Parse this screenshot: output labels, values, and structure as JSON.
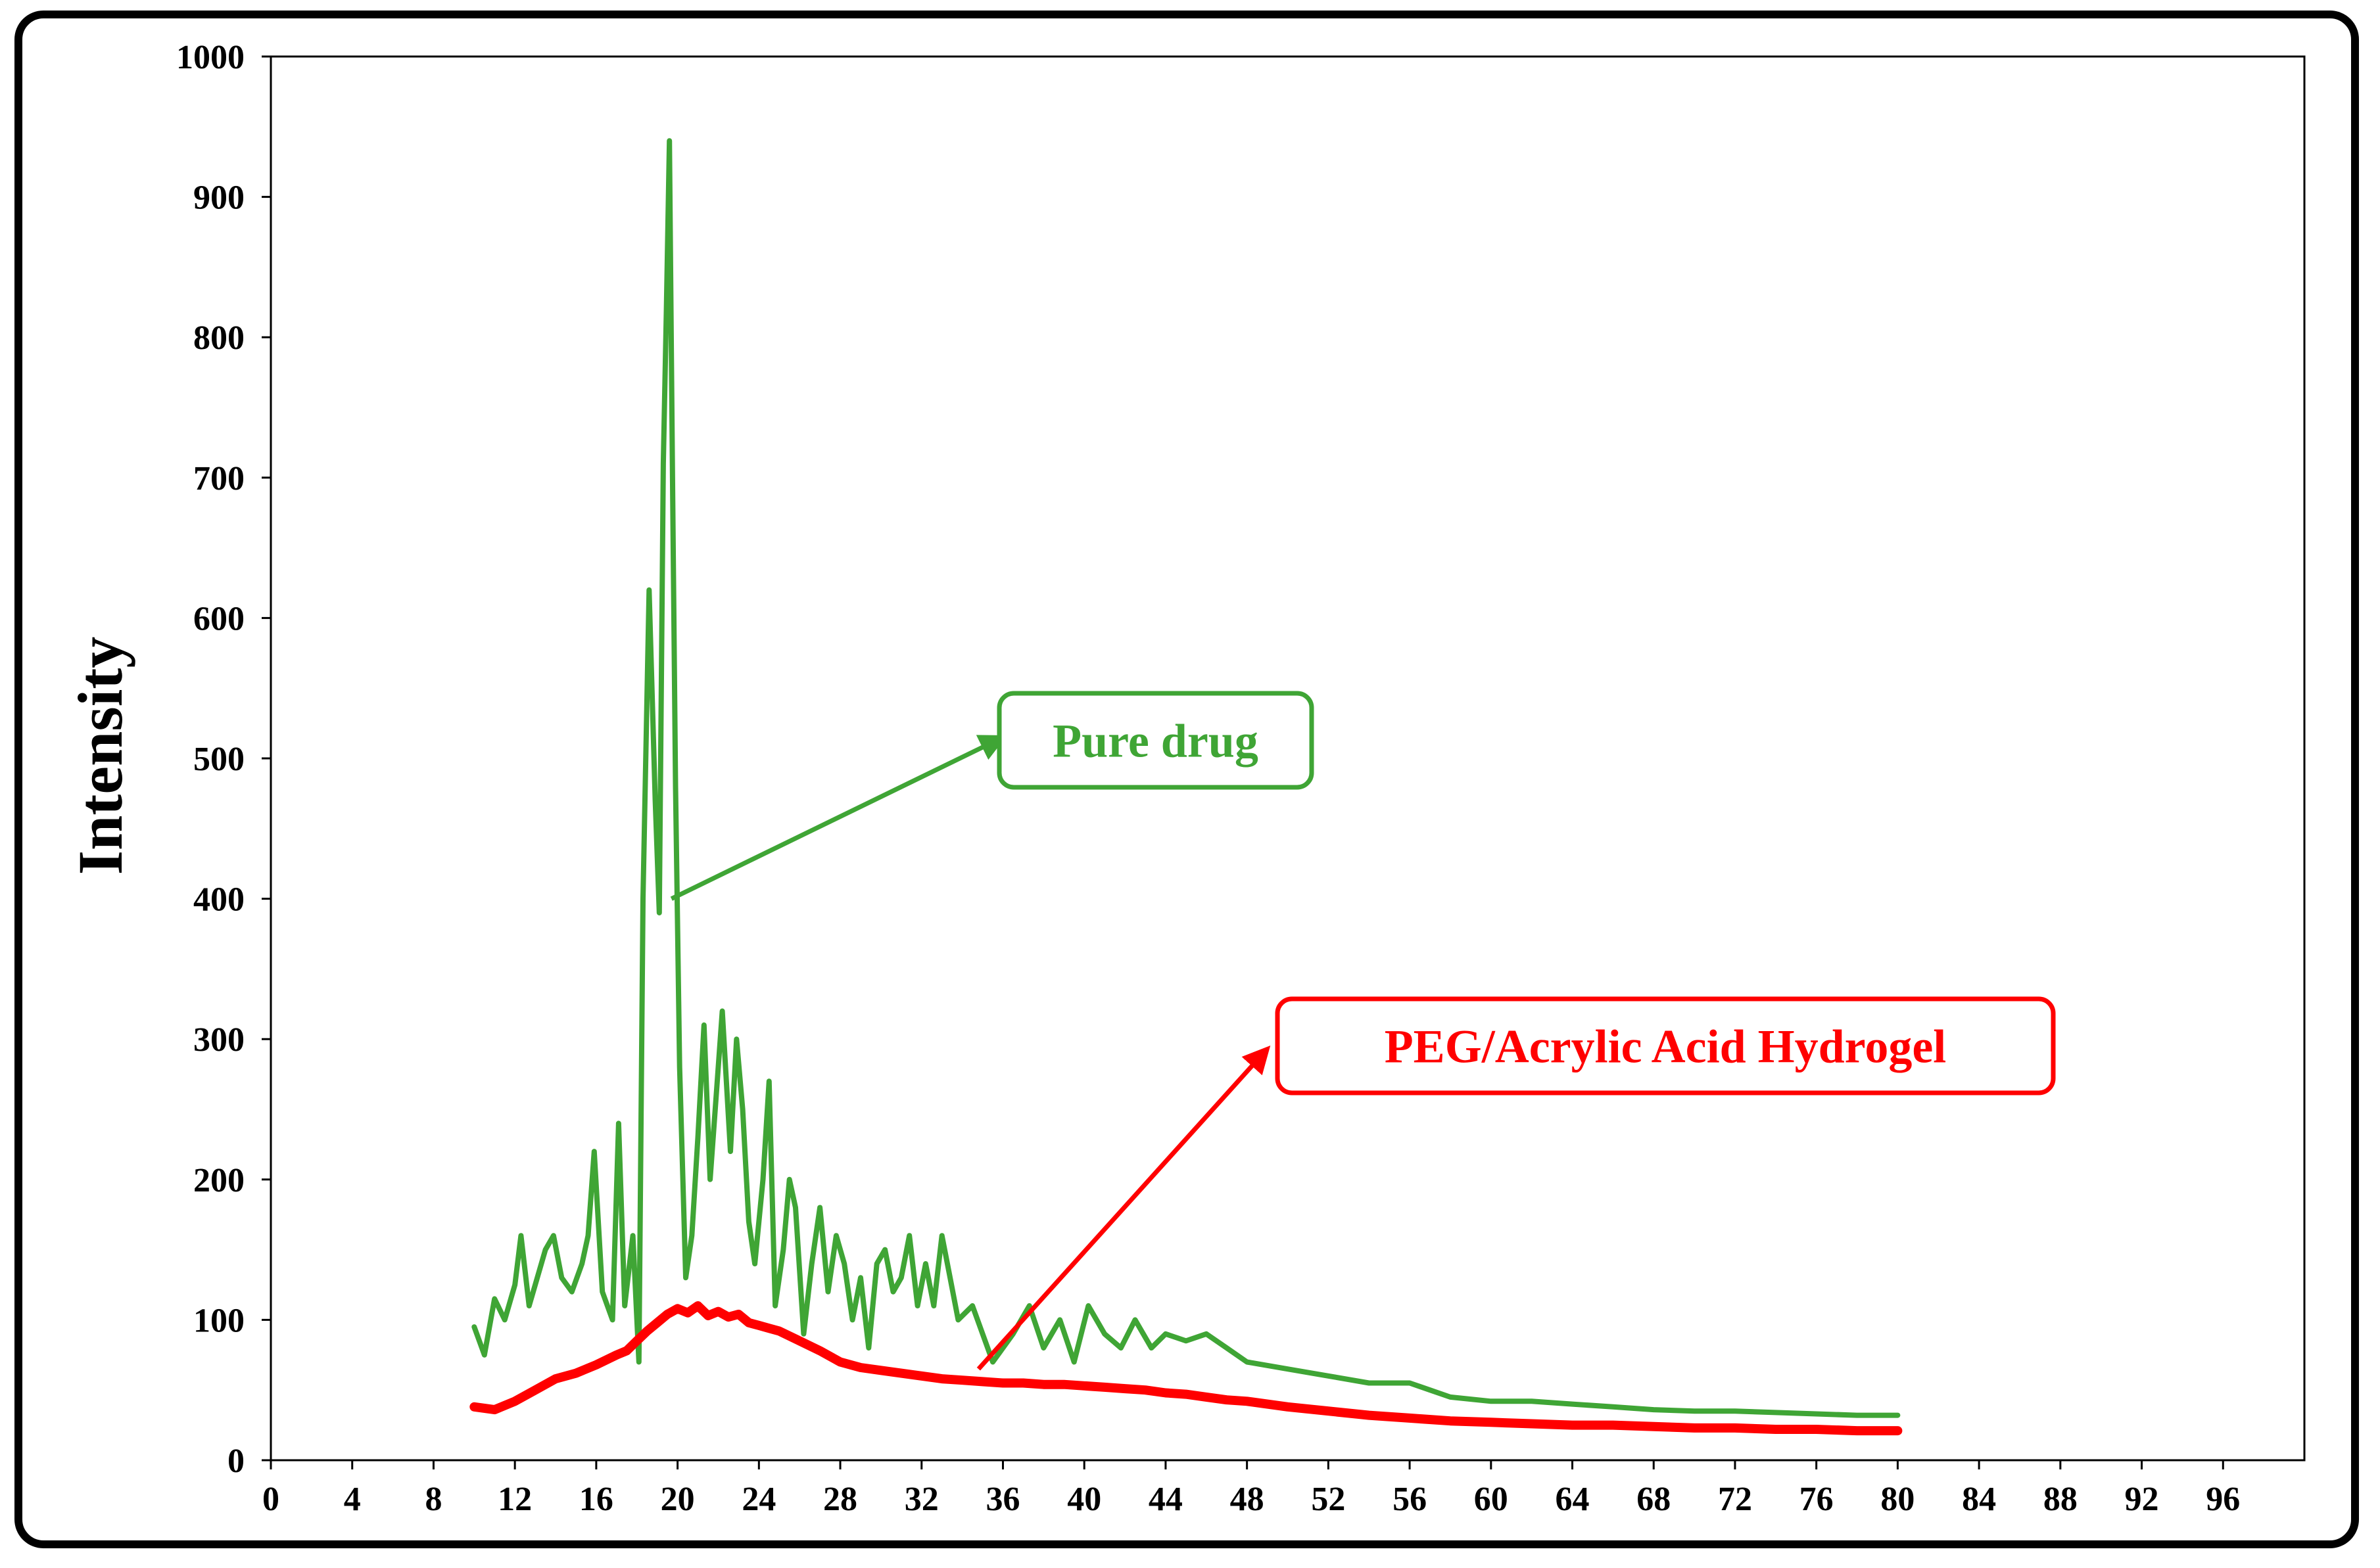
{
  "chart_data": {
    "type": "line",
    "title": "",
    "xlabel": "",
    "ylabel": "Intensity",
    "xlim": [
      0,
      100
    ],
    "ylim": [
      0,
      1000
    ],
    "x_ticks": [
      0,
      4,
      8,
      12,
      16,
      20,
      24,
      28,
      32,
      36,
      40,
      44,
      48,
      52,
      56,
      60,
      64,
      68,
      72,
      76,
      80,
      84,
      88,
      92,
      96
    ],
    "y_ticks": [
      0,
      100,
      200,
      300,
      400,
      500,
      600,
      700,
      800,
      900,
      1000
    ],
    "grid": false,
    "legend": "none",
    "series": [
      {
        "name": "Pure drug",
        "color": "#3fa535",
        "x": [
          10,
          10.5,
          11,
          11.5,
          12,
          12.3,
          12.7,
          13,
          13.5,
          13.9,
          14.3,
          14.8,
          15.3,
          15.6,
          15.9,
          16.3,
          16.8,
          17.1,
          17.4,
          17.8,
          18.1,
          18.3,
          18.6,
          18.9,
          19.1,
          19.3,
          19.45,
          19.6,
          19.75,
          19.9,
          20.1,
          20.4,
          20.7,
          21,
          21.3,
          21.6,
          21.9,
          22.2,
          22.6,
          22.9,
          23.2,
          23.5,
          23.8,
          24.2,
          24.5,
          24.8,
          25.2,
          25.5,
          25.8,
          26.2,
          26.6,
          27,
          27.4,
          27.8,
          28.2,
          28.6,
          29,
          29.4,
          29.8,
          30.2,
          30.6,
          31,
          31.4,
          31.8,
          32.2,
          32.6,
          33,
          33.4,
          33.8,
          34.5,
          35.5,
          36.5,
          37.3,
          38,
          38.8,
          39.5,
          40.2,
          41,
          41.8,
          42.5,
          43.3,
          44,
          45,
          46,
          47,
          48,
          50,
          52,
          54,
          56,
          57,
          58,
          60,
          62,
          64,
          66,
          68,
          70,
          72,
          74,
          76,
          78,
          80
        ],
        "y": [
          95,
          75,
          115,
          100,
          125,
          160,
          110,
          125,
          150,
          160,
          130,
          120,
          140,
          160,
          220,
          120,
          100,
          240,
          110,
          160,
          70,
          400,
          620,
          470,
          390,
          710,
          820,
          940,
          700,
          480,
          280,
          130,
          160,
          230,
          310,
          200,
          260,
          320,
          220,
          300,
          250,
          170,
          140,
          200,
          270,
          110,
          150,
          200,
          180,
          90,
          140,
          180,
          120,
          160,
          140,
          100,
          130,
          80,
          140,
          150,
          120,
          130,
          160,
          110,
          140,
          110,
          160,
          130,
          100,
          110,
          70,
          90,
          110,
          80,
          100,
          70,
          110,
          90,
          80,
          100,
          80,
          90,
          85,
          90,
          80,
          70,
          65,
          60,
          55,
          55,
          50,
          45,
          42,
          42,
          40,
          38,
          36,
          35,
          35,
          34,
          33,
          32,
          32
        ]
      },
      {
        "name": "PEG/Acrylic Acid Hydrogel",
        "color": "#ff0000",
        "x": [
          10,
          11,
          12,
          13,
          14,
          15,
          16,
          17,
          17.5,
          18,
          18.5,
          19,
          19.5,
          20,
          20.5,
          21,
          21.5,
          22,
          22.5,
          23,
          23.5,
          24,
          24.5,
          25,
          26,
          27,
          28,
          29,
          30,
          31,
          32,
          33,
          34,
          35,
          36,
          37,
          38,
          39,
          40,
          41,
          42,
          43,
          44,
          45,
          46,
          47,
          48,
          50,
          52,
          54,
          56,
          58,
          60,
          62,
          64,
          66,
          68,
          70,
          72,
          74,
          76,
          78,
          80
        ],
        "y": [
          38,
          36,
          42,
          50,
          58,
          62,
          68,
          75,
          78,
          85,
          92,
          98,
          104,
          108,
          105,
          110,
          103,
          106,
          102,
          104,
          98,
          96,
          94,
          92,
          85,
          78,
          70,
          66,
          64,
          62,
          60,
          58,
          57,
          56,
          55,
          55,
          54,
          54,
          53,
          52,
          51,
          50,
          48,
          47,
          45,
          43,
          42,
          38,
          35,
          32,
          30,
          28,
          27,
          26,
          25,
          25,
          24,
          23,
          23,
          22,
          22,
          21,
          21
        ]
      }
    ],
    "annotations": [
      {
        "text": "Pure drug",
        "color": "#3fa535",
        "arrow_from": [
          19.7,
          400
        ],
        "arrow_to": [
          36,
          515
        ]
      },
      {
        "text": "PEG/Acrylic Acid Hydrogel",
        "color": "#ff0000",
        "arrow_from": [
          34.8,
          65
        ],
        "arrow_to": [
          49,
          293
        ]
      }
    ]
  }
}
